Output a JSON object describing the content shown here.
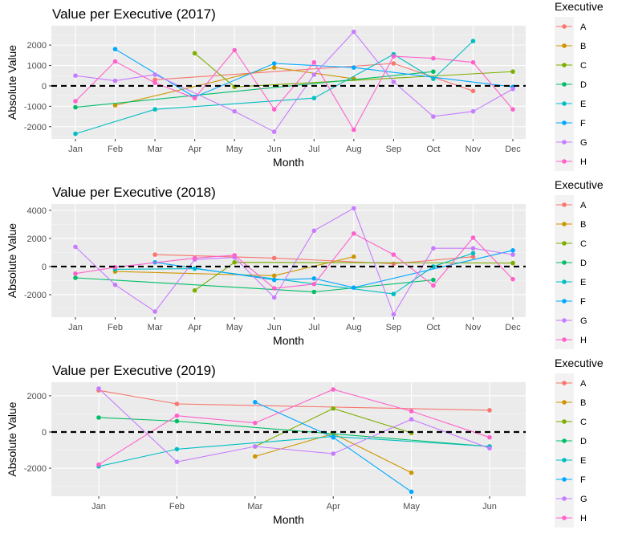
{
  "executive_colors": {
    "A": "#F8766D",
    "B": "#CD9600",
    "C": "#7CAE00",
    "D": "#00BE67",
    "E": "#00BFC4",
    "F": "#00A9FF",
    "G": "#C77CFF",
    "H": "#FF61CC"
  },
  "chart_data": [
    {
      "type": "line",
      "title": "Value per Executive (2017)",
      "xlabel": "Month",
      "ylabel": "Absolute Value",
      "legend_title": "Executive",
      "legend_position": "right",
      "grid": true,
      "reference_line": 0,
      "categories": [
        "Jan",
        "Feb",
        "Mar",
        "Apr",
        "May",
        "Jun",
        "Jul",
        "Aug",
        "Sep",
        "Oct",
        "Nov",
        "Dec"
      ],
      "ylim": [
        -2600,
        2950
      ],
      "yticks": [
        -2000,
        -1000,
        0,
        1000,
        2000
      ],
      "series": [
        {
          "name": "A",
          "points": [
            [
              "Mar",
              300
            ],
            [
              "Sep",
              1100
            ],
            [
              "Nov",
              -250
            ]
          ]
        },
        {
          "name": "B",
          "points": [
            [
              "Feb",
              -950
            ],
            [
              "Jun",
              900
            ],
            [
              "Aug",
              350
            ]
          ]
        },
        {
          "name": "C",
          "points": [
            [
              "Apr",
              1600
            ],
            [
              "May",
              -50
            ],
            [
              "Dec",
              700
            ]
          ]
        },
        {
          "name": "D",
          "points": [
            [
              "Jan",
              -1050
            ],
            [
              "Oct",
              700
            ]
          ]
        },
        {
          "name": "E",
          "points": [
            [
              "Jan",
              -2350
            ],
            [
              "Mar",
              -1150
            ],
            [
              "Jul",
              -600
            ],
            [
              "Sep",
              1550
            ],
            [
              "Oct",
              350
            ],
            [
              "Nov",
              2200
            ]
          ]
        },
        {
          "name": "F",
          "points": [
            [
              "Feb",
              1800
            ],
            [
              "Apr",
              -550
            ],
            [
              "Jun",
              1100
            ],
            [
              "Aug",
              900
            ],
            [
              "Dec",
              -50
            ]
          ]
        },
        {
          "name": "G",
          "points": [
            [
              "Jan",
              500
            ],
            [
              "Feb",
              250
            ],
            [
              "Mar",
              550
            ],
            [
              "May",
              -1250
            ],
            [
              "Jun",
              -2250
            ],
            [
              "Jul",
              550
            ],
            [
              "Aug",
              2650
            ],
            [
              "Sep",
              200
            ],
            [
              "Oct",
              -1500
            ],
            [
              "Nov",
              -1250
            ],
            [
              "Dec",
              -150
            ]
          ]
        },
        {
          "name": "H",
          "points": [
            [
              "Jan",
              -750
            ],
            [
              "Feb",
              1200
            ],
            [
              "Mar",
              150
            ],
            [
              "Apr",
              -600
            ],
            [
              "May",
              1750
            ],
            [
              "Jun",
              -1150
            ],
            [
              "Jul",
              1150
            ],
            [
              "Aug",
              -2150
            ],
            [
              "Sep",
              1450
            ],
            [
              "Oct",
              1350
            ],
            [
              "Nov",
              1150
            ],
            [
              "Dec",
              -1150
            ]
          ]
        }
      ]
    },
    {
      "type": "line",
      "title": "Value per Executive (2018)",
      "xlabel": "Month",
      "ylabel": "Absolute Value",
      "legend_title": "Executive",
      "legend_position": "right",
      "grid": true,
      "reference_line": 0,
      "categories": [
        "Jan",
        "Feb",
        "Mar",
        "Apr",
        "May",
        "Jun",
        "Jul",
        "Aug",
        "Sep",
        "Oct",
        "Nov",
        "Dec"
      ],
      "ylim": [
        -3600,
        4450
      ],
      "yticks": [
        -2000,
        0,
        2000,
        4000
      ],
      "series": [
        {
          "name": "A",
          "points": [
            [
              "Mar",
              850
            ],
            [
              "Jun",
              600
            ],
            [
              "Sep",
              200
            ],
            [
              "Nov",
              700
            ]
          ]
        },
        {
          "name": "B",
          "points": [
            [
              "Feb",
              -350
            ],
            [
              "Jun",
              -650
            ],
            [
              "Aug",
              700
            ]
          ]
        },
        {
          "name": "C",
          "points": [
            [
              "Apr",
              -1700
            ],
            [
              "May",
              300
            ],
            [
              "Dec",
              250
            ]
          ]
        },
        {
          "name": "D",
          "points": [
            [
              "Jan",
              -800
            ],
            [
              "Jul",
              -1800
            ],
            [
              "Oct",
              -950
            ]
          ]
        },
        {
          "name": "E",
          "points": [
            [
              "Feb",
              -200
            ],
            [
              "Apr",
              -150
            ],
            [
              "Sep",
              -1950
            ],
            [
              "Oct",
              0
            ],
            [
              "Nov",
              950
            ]
          ]
        },
        {
          "name": "F",
          "points": [
            [
              "Mar",
              300
            ],
            [
              "Jun",
              -950
            ],
            [
              "Jul",
              -850
            ],
            [
              "Aug",
              -1500
            ],
            [
              "Dec",
              1150
            ]
          ]
        },
        {
          "name": "G",
          "points": [
            [
              "Jan",
              1400
            ],
            [
              "Feb",
              -1300
            ],
            [
              "Mar",
              -3200
            ],
            [
              "Apr",
              500
            ],
            [
              "May",
              650
            ],
            [
              "Jun",
              -2200
            ],
            [
              "Jul",
              2550
            ],
            [
              "Aug",
              4150
            ],
            [
              "Sep",
              -3400
            ],
            [
              "Oct",
              1300
            ],
            [
              "Nov",
              1300
            ],
            [
              "Dec",
              850
            ]
          ]
        },
        {
          "name": "H",
          "points": [
            [
              "Jan",
              -500
            ],
            [
              "Feb",
              -50
            ],
            [
              "Apr",
              600
            ],
            [
              "May",
              800
            ],
            [
              "Jun",
              -1550
            ],
            [
              "Jul",
              -1250
            ],
            [
              "Aug",
              2350
            ],
            [
              "Sep",
              850
            ],
            [
              "Oct",
              -1350
            ],
            [
              "Nov",
              2050
            ],
            [
              "Dec",
              -900
            ]
          ]
        }
      ]
    },
    {
      "type": "line",
      "title": "Value per Executive (2019)",
      "xlabel": "Month",
      "ylabel": "Absolute Value",
      "legend_title": "Executive",
      "legend_position": "right",
      "grid": true,
      "reference_line": 0,
      "categories": [
        "Jan",
        "Feb",
        "Mar",
        "Apr",
        "May",
        "Jun"
      ],
      "ylim": [
        -3550,
        2750
      ],
      "yticks": [
        -2000,
        0,
        2000
      ],
      "series": [
        {
          "name": "A",
          "points": [
            [
              "Jan",
              2300
            ],
            [
              "Feb",
              1550
            ],
            [
              "Jun",
              1200
            ]
          ]
        },
        {
          "name": "B",
          "points": [
            [
              "Mar",
              -1350
            ],
            [
              "Apr",
              -100
            ],
            [
              "May",
              -2250
            ]
          ]
        },
        {
          "name": "C",
          "points": [
            [
              "Mar",
              -800
            ],
            [
              "Apr",
              1300
            ],
            [
              "May",
              -50
            ]
          ]
        },
        {
          "name": "D",
          "points": [
            [
              "Jan",
              800
            ],
            [
              "Feb",
              600
            ],
            [
              "Jun",
              -800
            ]
          ]
        },
        {
          "name": "E",
          "points": [
            [
              "Jan",
              -1900
            ],
            [
              "Feb",
              -950
            ],
            [
              "Apr",
              -250
            ],
            [
              "Jun",
              -800
            ]
          ]
        },
        {
          "name": "F",
          "points": [
            [
              "Mar",
              1650
            ],
            [
              "Apr",
              -300
            ],
            [
              "May",
              -3300
            ]
          ]
        },
        {
          "name": "G",
          "points": [
            [
              "Jan",
              2400
            ],
            [
              "Feb",
              -1650
            ],
            [
              "Mar",
              -800
            ],
            [
              "Apr",
              -1200
            ],
            [
              "May",
              700
            ],
            [
              "Jun",
              -900
            ]
          ]
        },
        {
          "name": "H",
          "points": [
            [
              "Jan",
              -1800
            ],
            [
              "Feb",
              900
            ],
            [
              "Mar",
              500
            ],
            [
              "Apr",
              2350
            ],
            [
              "May",
              1150
            ],
            [
              "Jun",
              -300
            ]
          ]
        }
      ]
    }
  ]
}
